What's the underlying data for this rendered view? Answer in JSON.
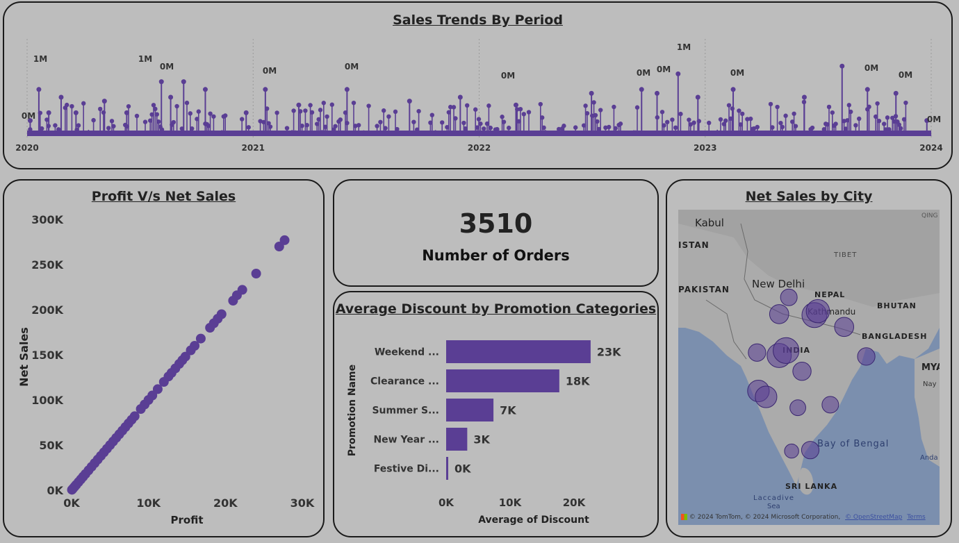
{
  "colors": {
    "accent": "#5a3e94",
    "background": "#bdbdbd",
    "border": "#1a1a1a"
  },
  "trend": {
    "title": "Sales Trends By Period",
    "x_ticks": [
      "2020",
      "2021",
      "2022",
      "2023",
      "2024"
    ],
    "peak_labels": [
      "1M",
      "1M",
      "0M",
      "0M",
      "0M",
      "0M",
      "0M",
      "0M",
      "1M",
      "0M",
      "0M",
      "0M",
      "0M",
      "0M"
    ]
  },
  "scatter": {
    "title": "Profit V/s Net Sales",
    "xlabel": "Profit",
    "ylabel": "Net Sales",
    "x_ticks": [
      "0K",
      "10K",
      "20K",
      "30K"
    ],
    "y_ticks": [
      "0K",
      "50K",
      "100K",
      "150K",
      "200K",
      "250K",
      "300K"
    ]
  },
  "kpi": {
    "value": "3510",
    "label": "Number of Orders"
  },
  "discount": {
    "title": "Average Discount by Promotion Categories",
    "ylabel": "Promotion Name",
    "xlabel": "Average of Discount",
    "x_ticks": [
      "0K",
      "10K",
      "20K"
    ]
  },
  "map": {
    "title": "Net Sales by City",
    "labels": {
      "kabul": "Kabul",
      "istan": "ISTAN",
      "tibet": "TIBET",
      "qing": "QING",
      "pakistan": "PAKISTAN",
      "new_delhi": "New Delhi",
      "nepal": "NEPAL",
      "kathmandu": "Kathmandu",
      "bhutan": "BHUTAN",
      "bangladesh": "BANGLADESH",
      "india": "INDIA",
      "mya": "MYA",
      "nay": "Nay",
      "bay": "Bay of Bengal",
      "anda": "Anda",
      "sri_lanka": "SRI LANKA",
      "laccadive": "Laccadive",
      "sea": "Sea"
    },
    "attribution": "© 2024 TomTom, © 2024 Microsoft Corporation,",
    "osm": "© OpenStreetMap",
    "terms": "Terms"
  },
  "chart_data": [
    {
      "type": "line",
      "title": "Sales Trends By Period",
      "xlabel": "",
      "ylabel": "",
      "x_range": [
        "2020-01-01",
        "2024-01-01"
      ],
      "series": [
        {
          "values": [
            {
              "x": "2020-01-06",
              "y": 0.2
            },
            {
              "x": "2020-01-20",
              "y": 0.6
            },
            {
              "x": "2020-02-05",
              "y": 0.3
            },
            {
              "x": "2020-02-25",
              "y": 0.5
            },
            {
              "x": "2020-03-20",
              "y": 0.3
            },
            {
              "x": "2020-05-05",
              "y": 0.45
            },
            {
              "x": "2020-06-10",
              "y": 0.3
            },
            {
              "x": "2020-08-05",
              "y": 0.7
            },
            {
              "x": "2020-08-20",
              "y": 0.5
            },
            {
              "x": "2020-09-10",
              "y": 0.7
            },
            {
              "x": "2020-10-15",
              "y": 0.6
            },
            {
              "x": "2020-12-20",
              "y": 0.3
            },
            {
              "x": "2021-01-20",
              "y": 0.6
            },
            {
              "x": "2021-03-15",
              "y": 0.4
            },
            {
              "x": "2021-06-01",
              "y": 0.6
            },
            {
              "x": "2021-09-10",
              "y": 0.45
            },
            {
              "x": "2021-12-01",
              "y": 0.5
            },
            {
              "x": "2022-03-01",
              "y": 0.4
            },
            {
              "x": "2022-07-01",
              "y": 0.55
            },
            {
              "x": "2022-09-20",
              "y": 0.6
            },
            {
              "x": "2022-10-15",
              "y": 0.55
            },
            {
              "x": "2022-11-18",
              "y": 0.8
            },
            {
              "x": "2022-12-20",
              "y": 0.5
            },
            {
              "x": "2023-02-15",
              "y": 0.6
            },
            {
              "x": "2023-06-10",
              "y": 0.5
            },
            {
              "x": "2023-08-10",
              "y": 0.9
            },
            {
              "x": "2023-09-20",
              "y": 0.6
            },
            {
              "x": "2023-11-05",
              "y": 0.55
            },
            {
              "x": "2023-12-25",
              "y": 0.2
            }
          ]
        }
      ]
    },
    {
      "type": "scatter",
      "title": "Profit V/s Net Sales",
      "xlabel": "Profit",
      "ylabel": "Net Sales",
      "xlim": [
        0,
        30000
      ],
      "ylim": [
        0,
        300000
      ],
      "series": [
        {
          "values": [
            {
              "x": 27700,
              "y": 277000
            },
            {
              "x": 27000,
              "y": 270000
            },
            {
              "x": 24000,
              "y": 240000
            },
            {
              "x": 22200,
              "y": 222000
            },
            {
              "x": 21500,
              "y": 216000
            },
            {
              "x": 21000,
              "y": 210000
            },
            {
              "x": 19500,
              "y": 195000
            },
            {
              "x": 19000,
              "y": 190000
            },
            {
              "x": 18500,
              "y": 185000
            },
            {
              "x": 18000,
              "y": 180000
            },
            {
              "x": 16800,
              "y": 168000
            },
            {
              "x": 16000,
              "y": 160000
            },
            {
              "x": 15500,
              "y": 155000
            },
            {
              "x": 14800,
              "y": 148000
            },
            {
              "x": 14400,
              "y": 144000
            },
            {
              "x": 14000,
              "y": 140000
            },
            {
              "x": 13500,
              "y": 135000
            },
            {
              "x": 13000,
              "y": 130000
            },
            {
              "x": 12600,
              "y": 126000
            },
            {
              "x": 12000,
              "y": 120000
            },
            {
              "x": 11200,
              "y": 112000
            },
            {
              "x": 10500,
              "y": 105000
            },
            {
              "x": 10000,
              "y": 100000
            },
            {
              "x": 9500,
              "y": 95000
            },
            {
              "x": 9000,
              "y": 90000
            },
            {
              "x": 8200,
              "y": 82000
            },
            {
              "x": 7800,
              "y": 78000
            },
            {
              "x": 7400,
              "y": 74000
            },
            {
              "x": 7000,
              "y": 70000
            },
            {
              "x": 6600,
              "y": 66000
            },
            {
              "x": 6200,
              "y": 62000
            },
            {
              "x": 5800,
              "y": 58000
            },
            {
              "x": 5400,
              "y": 54000
            },
            {
              "x": 5000,
              "y": 50000
            },
            {
              "x": 4600,
              "y": 46000
            },
            {
              "x": 4200,
              "y": 42000
            },
            {
              "x": 3800,
              "y": 38000
            },
            {
              "x": 3400,
              "y": 34000
            },
            {
              "x": 3000,
              "y": 30000
            },
            {
              "x": 2600,
              "y": 26000
            },
            {
              "x": 2200,
              "y": 22000
            },
            {
              "x": 1800,
              "y": 18000
            },
            {
              "x": 1500,
              "y": 15000
            },
            {
              "x": 1200,
              "y": 12000
            },
            {
              "x": 900,
              "y": 9000
            },
            {
              "x": 600,
              "y": 6000
            },
            {
              "x": 400,
              "y": 4000
            },
            {
              "x": 200,
              "y": 2000
            },
            {
              "x": 50,
              "y": 500
            }
          ]
        }
      ]
    },
    {
      "type": "bar",
      "orientation": "horizontal",
      "title": "Average Discount by Promotion Categories",
      "xlabel": "Average of Discount",
      "ylabel": "Promotion Name",
      "categories": [
        "Weekend ...",
        "Clearance ...",
        "Summer S...",
        "New Year ...",
        "Festive Di..."
      ],
      "values": [
        22600,
        17700,
        7400,
        3300,
        300
      ],
      "data_labels": [
        "23K",
        "18K",
        "7K",
        "3K",
        "0K"
      ],
      "xlim": [
        0,
        25000
      ]
    },
    {
      "type": "bubble-map",
      "title": "Net Sales by City",
      "points": [
        {
          "lon": 77.2,
          "lat": 28.6,
          "size": 1.0
        },
        {
          "lon": 75.8,
          "lat": 26.9,
          "size": 1.3
        },
        {
          "lon": 80.9,
          "lat": 26.8,
          "size": 2.0
        },
        {
          "lon": 81.4,
          "lat": 27.2,
          "size": 1.8
        },
        {
          "lon": 85.2,
          "lat": 25.6,
          "size": 1.3
        },
        {
          "lon": 72.6,
          "lat": 23.0,
          "size": 1.1
        },
        {
          "lon": 75.8,
          "lat": 22.7,
          "size": 1.9
        },
        {
          "lon": 76.8,
          "lat": 23.2,
          "size": 2.1
        },
        {
          "lon": 79.1,
          "lat": 21.1,
          "size": 1.2
        },
        {
          "lon": 88.4,
          "lat": 22.6,
          "size": 1.1
        },
        {
          "lon": 72.8,
          "lat": 19.1,
          "size": 1.6
        },
        {
          "lon": 73.9,
          "lat": 18.5,
          "size": 1.6
        },
        {
          "lon": 78.5,
          "lat": 17.4,
          "size": 0.9
        },
        {
          "lon": 83.2,
          "lat": 17.7,
          "size": 1.0
        },
        {
          "lon": 77.6,
          "lat": 13.0,
          "size": 0.7
        },
        {
          "lon": 80.3,
          "lat": 13.1,
          "size": 1.1
        }
      ]
    }
  ]
}
